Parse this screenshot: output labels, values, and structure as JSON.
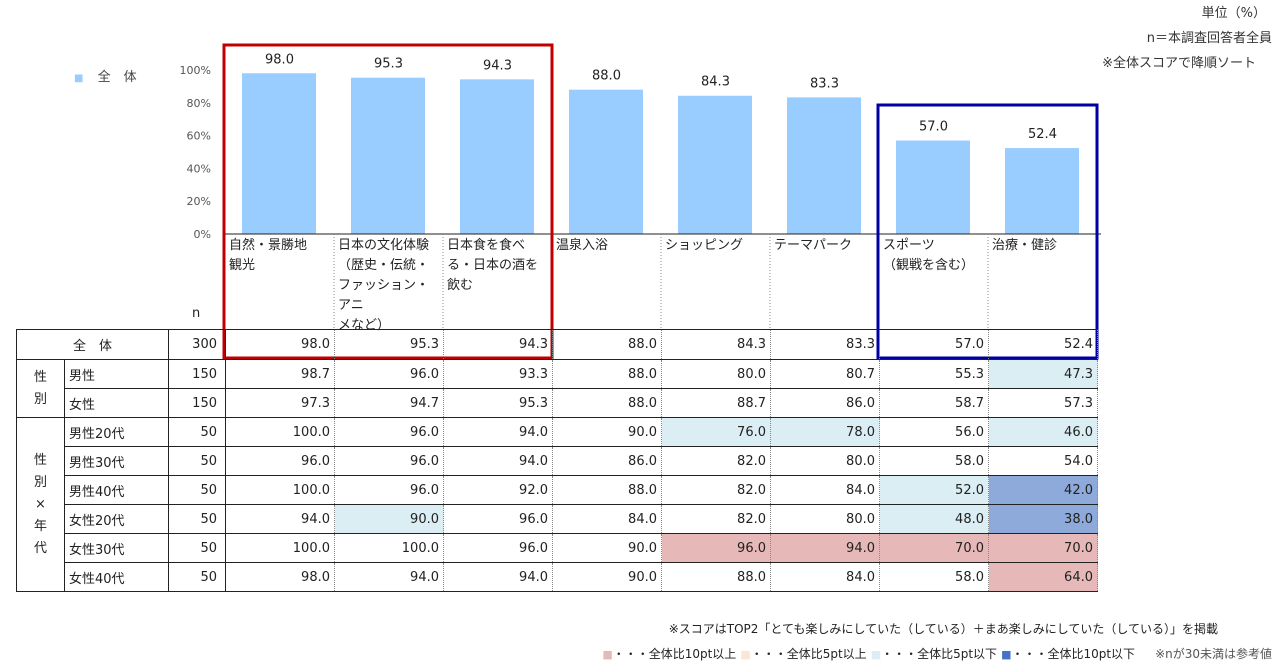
{
  "notes": {
    "unit": "単位（%）",
    "n_base": "n＝本調査回答者全員",
    "sort": "※全体スコアで降順ソート"
  },
  "legend": {
    "marker": "■",
    "label": "全　体"
  },
  "chart_data": {
    "type": "bar",
    "categories": [
      "自然・景勝地\n観光",
      "日本の文化体験\n（歴史・伝統・\nファッション・アニ\nメなど）",
      "日本食を食べ\nる・日本の酒を\n飲む",
      "温泉入浴",
      "ショッピング",
      "テーマパーク",
      "スポーツ\n（観戦を含む）",
      "治療・健診"
    ],
    "series": [
      {
        "name": "全　体",
        "values": [
          98.0,
          95.3,
          94.3,
          88.0,
          84.3,
          83.3,
          57.0,
          52.4
        ],
        "color": "#99ccff"
      }
    ],
    "value_labels": [
      "98.0",
      "95.3",
      "94.3",
      "88.0",
      "84.3",
      "83.3",
      "57.0",
      "52.4"
    ],
    "yticks": [
      "0%",
      "20%",
      "40%",
      "60%",
      "80%",
      "100%"
    ],
    "ylim": [
      0,
      100
    ],
    "highlight_red_columns": [
      0,
      1,
      2
    ],
    "highlight_blue_columns": [
      6,
      7
    ],
    "colors": {
      "red_box": "#c00000",
      "blue_box": "#0000a0",
      "bar": "#99ccff"
    }
  },
  "table": {
    "n_header": "n",
    "total": {
      "label": "全　体",
      "n": "300",
      "values": [
        "98.0",
        "95.3",
        "94.3",
        "88.0",
        "84.3",
        "83.3",
        "57.0",
        "52.4"
      ]
    },
    "gender_group_label": "性\n別",
    "gender_rows": [
      {
        "label": "男性",
        "n": "150",
        "values": [
          "98.7",
          "96.0",
          "93.3",
          "88.0",
          "80.0",
          "80.7",
          "55.3",
          "47.3"
        ],
        "shade": [
          "",
          "",
          "",
          "",
          "",
          "",
          "",
          "lb"
        ]
      },
      {
        "label": "女性",
        "n": "150",
        "values": [
          "97.3",
          "94.7",
          "95.3",
          "88.0",
          "88.7",
          "86.0",
          "58.7",
          "57.3"
        ],
        "shade": [
          "",
          "",
          "",
          "",
          "",
          "",
          "",
          ""
        ]
      }
    ],
    "age_group_label": "性\n別\n×\n年\n代",
    "age_rows": [
      {
        "label": "男性20代",
        "n": "50",
        "values": [
          "100.0",
          "96.0",
          "94.0",
          "90.0",
          "76.0",
          "78.0",
          "56.0",
          "46.0"
        ],
        "shade": [
          "",
          "",
          "",
          "",
          "lb",
          "lb",
          "",
          "lb"
        ]
      },
      {
        "label": "男性30代",
        "n": "50",
        "values": [
          "96.0",
          "96.0",
          "94.0",
          "86.0",
          "82.0",
          "80.0",
          "58.0",
          "54.0"
        ],
        "shade": [
          "",
          "",
          "",
          "",
          "",
          "",
          "",
          ""
        ]
      },
      {
        "label": "男性40代",
        "n": "50",
        "values": [
          "100.0",
          "96.0",
          "92.0",
          "88.0",
          "82.0",
          "84.0",
          "52.0",
          "42.0"
        ],
        "shade": [
          "",
          "",
          "",
          "",
          "",
          "",
          "lb",
          "db"
        ]
      },
      {
        "label": "女性20代",
        "n": "50",
        "values": [
          "94.0",
          "90.0",
          "96.0",
          "84.0",
          "82.0",
          "80.0",
          "48.0",
          "38.0"
        ],
        "shade": [
          "",
          "lb",
          "",
          "",
          "",
          "",
          "lb",
          "db"
        ]
      },
      {
        "label": "女性30代",
        "n": "50",
        "values": [
          "100.0",
          "100.0",
          "96.0",
          "90.0",
          "96.0",
          "94.0",
          "70.0",
          "70.0"
        ],
        "shade": [
          "",
          "",
          "",
          "",
          "pink",
          "pink",
          "pink",
          "pink"
        ]
      },
      {
        "label": "女性40代",
        "n": "50",
        "values": [
          "98.0",
          "94.0",
          "94.0",
          "90.0",
          "88.0",
          "84.0",
          "58.0",
          "64.0"
        ],
        "shade": [
          "",
          "",
          "",
          "",
          "",
          "",
          "",
          "pink"
        ]
      }
    ]
  },
  "footer": {
    "score_note": "※スコアはTOP2「とても楽しみにしていた（している）＋まあ楽しみにしていた（している）」を掲載",
    "legend_items": [
      {
        "marker": "■",
        "color": "#e6b8b7",
        "text": "・・・全体比10pt以上"
      },
      {
        "marker": "■",
        "color": "#fce4d6",
        "text": "・・・全体比5pt以上"
      },
      {
        "marker": "■",
        "color": "#dbeef4",
        "text": "・・・全体比5pt以下"
      },
      {
        "marker": "■",
        "color": "#4472c4",
        "text": "・・・全体比10pt以下"
      }
    ],
    "n_note": "※nが30未満は参考値"
  }
}
